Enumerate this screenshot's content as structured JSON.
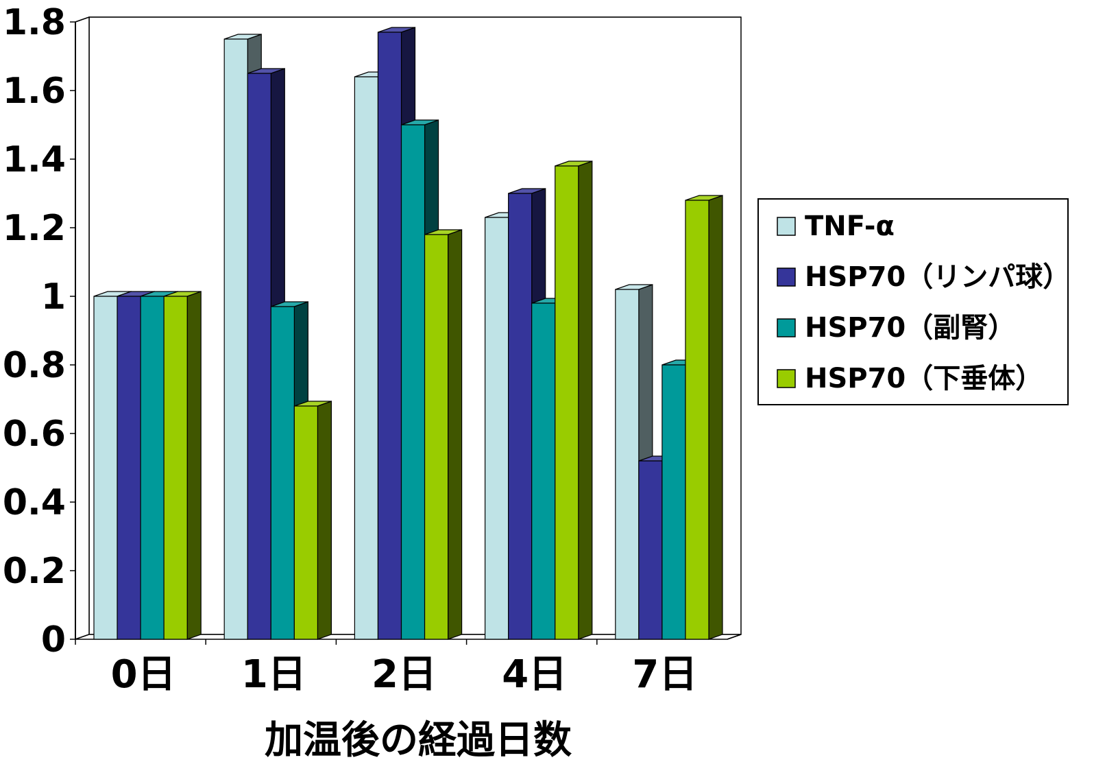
{
  "chart_data": {
    "type": "bar",
    "style": "3d-clustered",
    "categories": [
      "0日",
      "1日",
      "2日",
      "4日",
      "7日"
    ],
    "series": [
      {
        "name": "TNF-α",
        "values": [
          1.0,
          1.75,
          1.64,
          1.23,
          1.02
        ],
        "color": "#bfe3e6"
      },
      {
        "name": "HSP70（リンパ球）",
        "values": [
          1.0,
          1.65,
          1.77,
          1.3,
          0.52
        ],
        "color": "#35359a"
      },
      {
        "name": "HSP70（副腎）",
        "values": [
          1.0,
          0.97,
          1.5,
          0.98,
          0.8
        ],
        "color": "#009a9a"
      },
      {
        "name": "HSP70（下垂体）",
        "values": [
          1.0,
          0.68,
          1.18,
          1.38,
          1.28
        ],
        "color": "#99cc00"
      }
    ],
    "xlabel": "加温後の経過日数",
    "ylabel": "",
    "ylim": [
      0,
      1.8
    ],
    "yticks": [
      "0",
      "0.2",
      "0.4",
      "0.6",
      "0.8",
      "1",
      "1.2",
      "1.4",
      "1.6",
      "1.8"
    ],
    "grid": true,
    "legend": "right"
  }
}
